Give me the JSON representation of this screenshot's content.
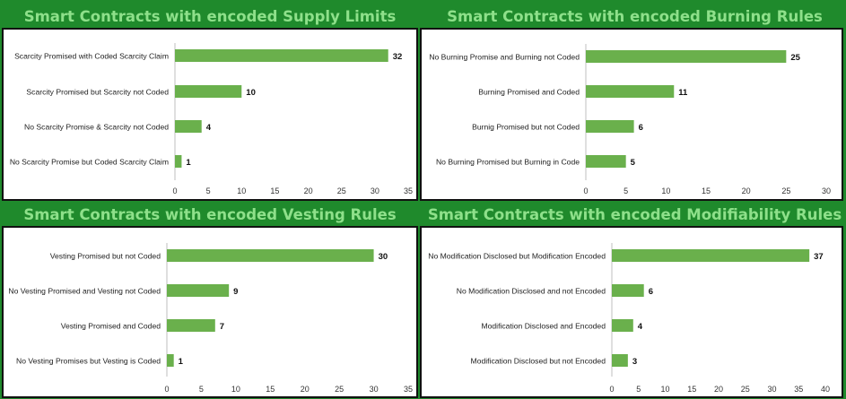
{
  "colors": {
    "background": "#1f8a2c",
    "title": "#8ee08a",
    "bar": "#6ab04c",
    "panel": "#ffffff"
  },
  "chart_data": [
    {
      "type": "bar",
      "orientation": "horizontal",
      "title": "Smart Contracts with encoded Supply Limits",
      "categories": [
        "Scarcity Promised with Coded Scarcity Claim",
        "Scarcity Promised but Scarcity not Coded",
        "No Scarcity Promise & Scarcity not Coded",
        "No Scarcity Promise but Coded Scarcity Claim"
      ],
      "values": [
        32,
        10,
        4,
        1
      ],
      "xlim": [
        0,
        35
      ],
      "ticks": [
        "0",
        "5",
        "10",
        "15",
        "20",
        "25",
        "30",
        "35"
      ],
      "grid": false
    },
    {
      "type": "bar",
      "orientation": "horizontal",
      "title": "Smart Contracts with encoded Burning Rules",
      "categories": [
        "No Burning Promise and Burning not Coded",
        "Burning Promised and Coded",
        "Burnig Promised but not Coded",
        "No Burning Promised but Burning in Code"
      ],
      "values": [
        25,
        11,
        6,
        5
      ],
      "xlim": [
        0,
        30
      ],
      "ticks": [
        "0",
        "5",
        "10",
        "15",
        "20",
        "25",
        "30"
      ],
      "grid": false
    },
    {
      "type": "bar",
      "orientation": "horizontal",
      "title": "Smart Contracts with encoded Vesting Rules",
      "categories": [
        "Vesting Promised but not Coded",
        "No Vesting Promised and Vesting not Coded",
        "Vesting Promised and Coded",
        "No Vesting Promises but Vesting is Coded"
      ],
      "values": [
        30,
        9,
        7,
        1
      ],
      "xlim": [
        0,
        35
      ],
      "ticks": [
        "0",
        "5",
        "10",
        "15",
        "20",
        "25",
        "30",
        "35"
      ],
      "grid": false
    },
    {
      "type": "bar",
      "orientation": "horizontal",
      "title": "Smart Contracts with encoded Modifiability Rules",
      "categories": [
        "No Modification Disclosed but Modification Encoded",
        "No Modification Disclosed and not Encoded",
        "Modification Disclosed and Encoded",
        "Modification Disclosed but not Encoded"
      ],
      "values": [
        37,
        6,
        4,
        3
      ],
      "xlim": [
        0,
        40
      ],
      "ticks": [
        "0",
        "5",
        "10",
        "15",
        "20",
        "25",
        "30",
        "35",
        "40"
      ],
      "grid": false
    }
  ]
}
